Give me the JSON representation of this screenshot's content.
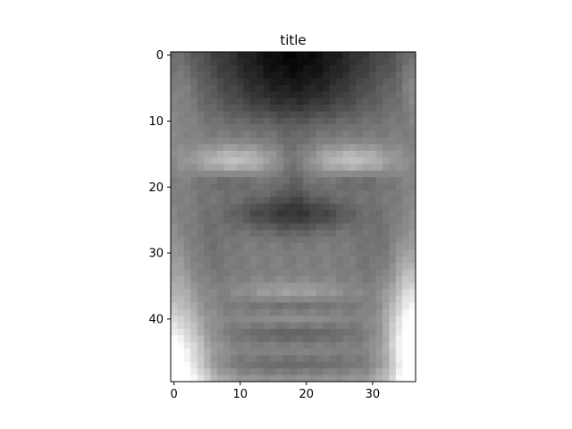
{
  "chart_data": {
    "type": "heatmap",
    "title": "title",
    "xlabel": "",
    "ylabel": "",
    "colormap": "gray",
    "image_width": 37,
    "image_height": 50,
    "xlim": [
      -0.5,
      36.5
    ],
    "ylim": [
      49.5,
      -0.5
    ],
    "x_ticks": [
      0,
      10,
      20,
      30
    ],
    "x_tick_labels": [
      "0",
      "10",
      "20",
      "30"
    ],
    "y_ticks": [
      0,
      10,
      20,
      30,
      40
    ],
    "y_tick_labels": [
      "0",
      "10",
      "20",
      "30",
      "40"
    ],
    "grid": false,
    "depiction": "grayscale face (average face image)"
  }
}
